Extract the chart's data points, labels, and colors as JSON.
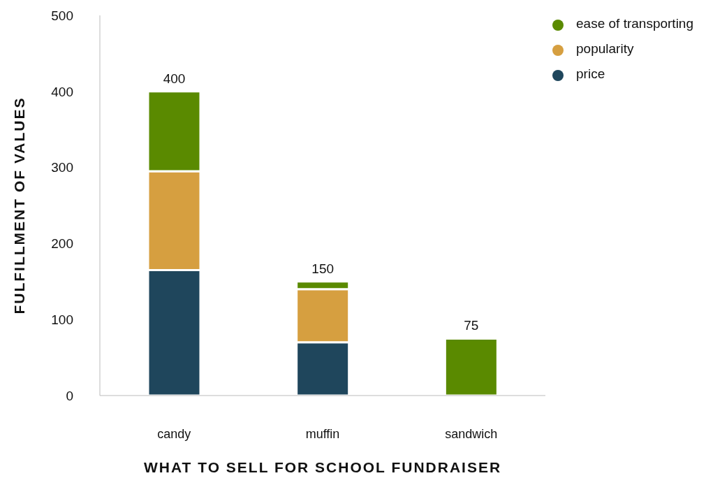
{
  "chart_data": {
    "type": "bar",
    "xlabel": "WHAT TO SELL FOR SCHOOL FUNDRAISER",
    "ylabel": "FULFILLMENT OF VALUES",
    "categories": [
      "candy",
      "muffin",
      "sandwich"
    ],
    "stacked": true,
    "series": [
      {
        "name": "price",
        "color": "#1f465c",
        "values": [
          165,
          70,
          0
        ]
      },
      {
        "name": "popularity",
        "color": "#d69f40",
        "values": [
          130,
          70,
          0
        ]
      },
      {
        "name": "ease of transporting",
        "color": "#5a8a00",
        "values": [
          105,
          10,
          75
        ]
      }
    ],
    "totals": [
      "400",
      "150",
      "75"
    ],
    "ylim": [
      0,
      500
    ],
    "yticks": [
      0,
      100,
      200,
      300,
      400,
      500
    ],
    "grid": false,
    "legend": "top right"
  }
}
